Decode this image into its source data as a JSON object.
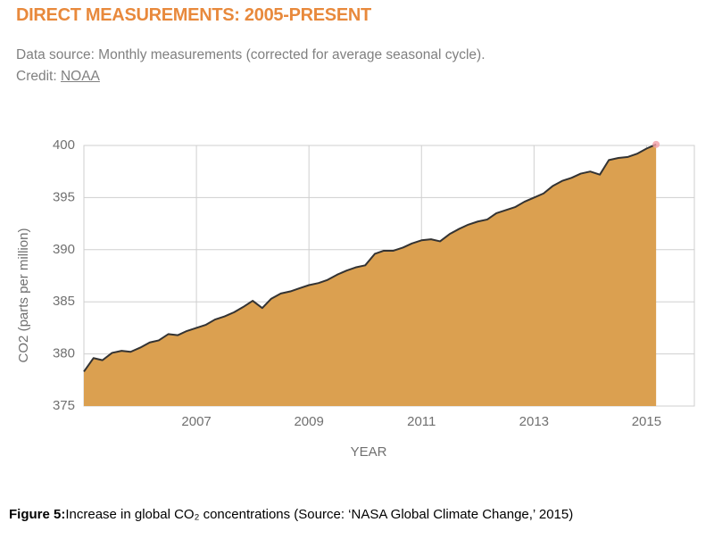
{
  "chart_data": {
    "type": "area",
    "title": "DIRECT MEASUREMENTS: 2005-PRESENT",
    "subtitle": "Data source: Monthly measurements (corrected for average seasonal cycle). Credit:",
    "credit_link": "NOAA",
    "x_label": "YEAR",
    "y_label": "CO2 (parts per million)",
    "x": [
      2005,
      2005.17,
      2005.33,
      2005.5,
      2005.67,
      2005.83,
      2006,
      2006.17,
      2006.33,
      2006.5,
      2006.67,
      2006.83,
      2007,
      2007.17,
      2007.33,
      2007.5,
      2007.67,
      2007.83,
      2008,
      2008.17,
      2008.33,
      2008.5,
      2008.67,
      2008.83,
      2009,
      2009.17,
      2009.33,
      2009.5,
      2009.67,
      2009.83,
      2010,
      2010.17,
      2010.33,
      2010.5,
      2010.67,
      2010.83,
      2011,
      2011.17,
      2011.33,
      2011.5,
      2011.67,
      2011.83,
      2012,
      2012.17,
      2012.33,
      2012.5,
      2012.67,
      2012.83,
      2013,
      2013.17,
      2013.33,
      2013.5,
      2013.67,
      2013.83,
      2014,
      2014.17,
      2014.33,
      2014.5,
      2014.67,
      2014.83,
      2015,
      2015.17
    ],
    "values": [
      378.3,
      379.6,
      379.4,
      380.1,
      380.3,
      380.2,
      380.6,
      381.1,
      381.3,
      381.9,
      381.8,
      382.2,
      382.5,
      382.8,
      383.3,
      383.6,
      384.0,
      384.5,
      385.1,
      384.4,
      385.3,
      385.8,
      386.0,
      386.3,
      386.6,
      386.8,
      387.1,
      387.6,
      388.0,
      388.3,
      388.5,
      389.6,
      389.9,
      389.9,
      390.2,
      390.6,
      390.9,
      391.0,
      390.8,
      391.5,
      392.0,
      392.4,
      392.7,
      392.9,
      393.5,
      393.8,
      394.1,
      394.6,
      395.0,
      395.4,
      396.1,
      396.6,
      396.9,
      397.3,
      397.5,
      397.2,
      398.6,
      398.8,
      398.9,
      399.2,
      399.7,
      400.1
    ],
    "color": "#dba050",
    "line_color": "#333333",
    "xlim": [
      2005,
      2015.85
    ],
    "xticks": [
      2007,
      2009,
      2011,
      2013,
      2015
    ],
    "ylim": [
      375,
      400
    ],
    "yticks": [
      375,
      380,
      385,
      390,
      395,
      400
    ],
    "grid": true
  },
  "caption": {
    "label": "Figure 5:",
    "text": "Increase in global CO₂ concentrations (Source: ‘NASA Global Climate Change,’ 2015)"
  }
}
